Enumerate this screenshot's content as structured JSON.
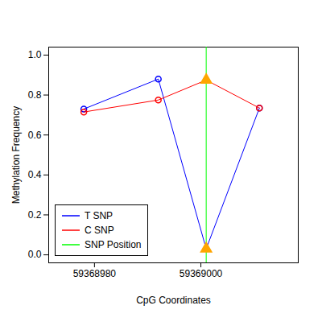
{
  "chart_data": {
    "type": "line",
    "x_label": "CpG Coordinates",
    "y_label": "Methylation Frequency",
    "x": [
      59368978,
      59368992,
      59369001,
      59369011
    ],
    "series": [
      {
        "name": "T SNP",
        "color": "#0000ff",
        "values": [
          0.73,
          0.88,
          0.03,
          0.735
        ],
        "marker": "circle"
      },
      {
        "name": "C SNP",
        "color": "#ff0000",
        "values": [
          0.715,
          0.775,
          0.875,
          0.735
        ],
        "marker": "circle"
      }
    ],
    "snp_position": {
      "name": "SNP Position",
      "x": 59369001,
      "color": "#00ff00"
    },
    "xlim": [
      59368971.4,
      59369018.3
    ],
    "xticks": [
      59368980,
      59369000
    ],
    "ylim": [
      -0.04,
      1.04
    ],
    "yticks": [
      {
        "value": 0,
        "label": "0.0"
      },
      {
        "value": 0.2,
        "label": "0.2"
      },
      {
        "value": 0.4,
        "label": "0.4"
      },
      {
        "value": 0.6,
        "label": "0.6"
      },
      {
        "value": 0.8,
        "label": "0.8"
      },
      {
        "value": 1,
        "label": "1.0"
      }
    ],
    "legend": "lower left",
    "grid": false
  }
}
